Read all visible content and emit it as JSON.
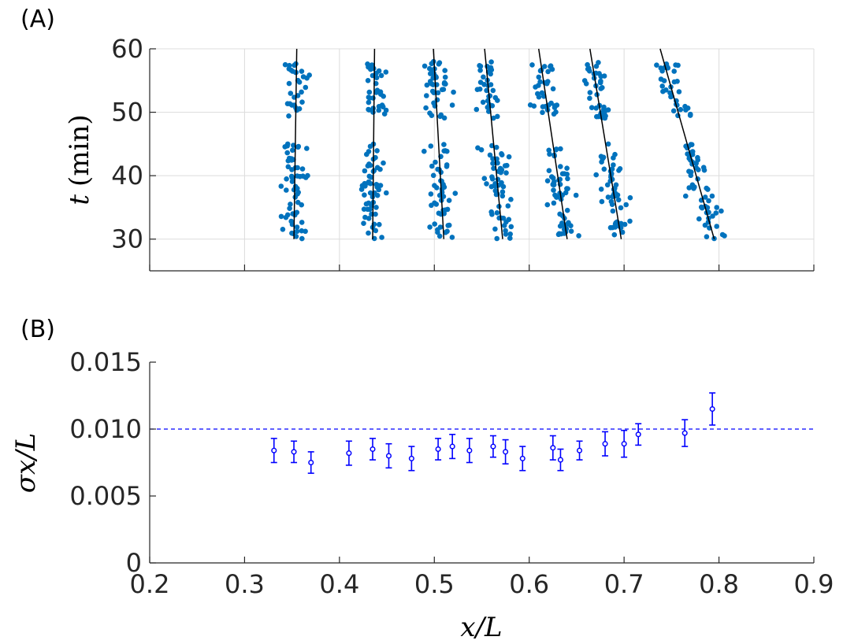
{
  "chart_data": [
    {
      "panel_label": "(A)",
      "type": "scatter",
      "xlim": [
        0.2,
        0.9
      ],
      "ylim": [
        25,
        60
      ],
      "grid": true,
      "ylabel_symbol": "t",
      "ylabel_unit": "(min)",
      "y_ticks": [
        "30",
        "40",
        "50",
        "60"
      ],
      "colors": {
        "points": "#0072BD",
        "fit_lines": "#000000"
      },
      "point_time_ranges": [
        [
          30,
          45
        ],
        [
          49,
          58
        ]
      ],
      "point_spread": 0.012,
      "point_count_per_track": 90,
      "tracks": [
        {
          "x_at_t30": 0.352,
          "x_at_t60": 0.355
        },
        {
          "x_at_t30": 0.435,
          "x_at_t60": 0.437
        },
        {
          "x_at_t30": 0.51,
          "x_at_t60": 0.499
        },
        {
          "x_at_t30": 0.572,
          "x_at_t60": 0.553
        },
        {
          "x_at_t30": 0.64,
          "x_at_t60": 0.61
        },
        {
          "x_at_t30": 0.697,
          "x_at_t60": 0.664
        },
        {
          "x_at_t30": 0.795,
          "x_at_t60": 0.738
        }
      ]
    },
    {
      "panel_label": "(B)",
      "type": "scatter",
      "xlim": [
        0.2,
        0.9
      ],
      "ylim": [
        0,
        0.015
      ],
      "grid": false,
      "xlabel_symbol": "x/L",
      "ylabel_symbol": "σx/L",
      "x_ticks": [
        "0.2",
        "0.3",
        "0.4",
        "0.5",
        "0.6",
        "0.7",
        "0.8",
        "0.9"
      ],
      "y_ticks": [
        "0",
        "0.005",
        "0.010",
        "0.015"
      ],
      "reference_line_y": 0.01,
      "colors": {
        "markers": "#0000FF",
        "reference_line": "#0000FF"
      },
      "points": [
        {
          "x": 0.331,
          "y": 0.0084,
          "err": 0.0009
        },
        {
          "x": 0.352,
          "y": 0.0083,
          "err": 0.0008
        },
        {
          "x": 0.37,
          "y": 0.0075,
          "err": 0.0008
        },
        {
          "x": 0.41,
          "y": 0.0082,
          "err": 0.0009
        },
        {
          "x": 0.435,
          "y": 0.0085,
          "err": 0.0008
        },
        {
          "x": 0.452,
          "y": 0.008,
          "err": 0.0009
        },
        {
          "x": 0.476,
          "y": 0.0078,
          "err": 0.0009
        },
        {
          "x": 0.504,
          "y": 0.0085,
          "err": 0.0008
        },
        {
          "x": 0.519,
          "y": 0.0087,
          "err": 0.0009
        },
        {
          "x": 0.537,
          "y": 0.0084,
          "err": 0.0009
        },
        {
          "x": 0.562,
          "y": 0.0087,
          "err": 0.0008
        },
        {
          "x": 0.575,
          "y": 0.0083,
          "err": 0.0009
        },
        {
          "x": 0.593,
          "y": 0.0078,
          "err": 0.0009
        },
        {
          "x": 0.625,
          "y": 0.0086,
          "err": 0.0009
        },
        {
          "x": 0.633,
          "y": 0.0077,
          "err": 0.0008
        },
        {
          "x": 0.653,
          "y": 0.0084,
          "err": 0.0007
        },
        {
          "x": 0.68,
          "y": 0.0089,
          "err": 0.0009
        },
        {
          "x": 0.7,
          "y": 0.0089,
          "err": 0.001
        },
        {
          "x": 0.715,
          "y": 0.0096,
          "err": 0.0008
        },
        {
          "x": 0.764,
          "y": 0.0097,
          "err": 0.001
        },
        {
          "x": 0.793,
          "y": 0.0115,
          "err": 0.0012
        }
      ]
    }
  ]
}
